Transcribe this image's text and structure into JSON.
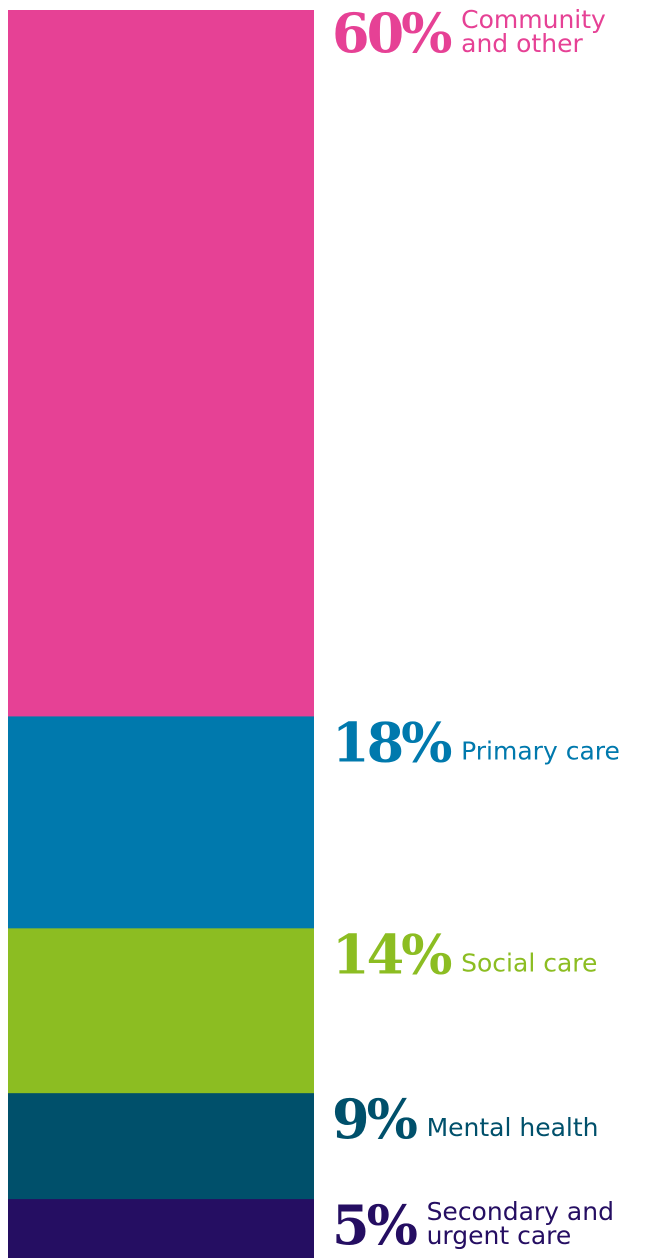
{
  "chart_data": {
    "type": "bar",
    "subtype": "stacked-single-column",
    "categories": [
      "Community and other",
      "Primary care",
      "Social care",
      "Mental health",
      "Secondary and urgent care"
    ],
    "values": [
      60,
      18,
      14,
      9,
      5
    ],
    "value_labels": [
      "60%",
      "18%",
      "14%",
      "9%",
      "5%"
    ],
    "label_lines": [
      [
        "Community",
        "and other"
      ],
      [
        "Primary care"
      ],
      [
        "Social care"
      ],
      [
        "Mental health"
      ],
      [
        "Secondary and",
        "urgent care"
      ]
    ],
    "colors": [
      "#e64195",
      "#0079ad",
      "#8cbd22",
      "#00506b",
      "#250e62"
    ],
    "title": "",
    "xlabel": "",
    "ylabel": "",
    "legend": "labels-right-of-bar",
    "grid": false
  }
}
